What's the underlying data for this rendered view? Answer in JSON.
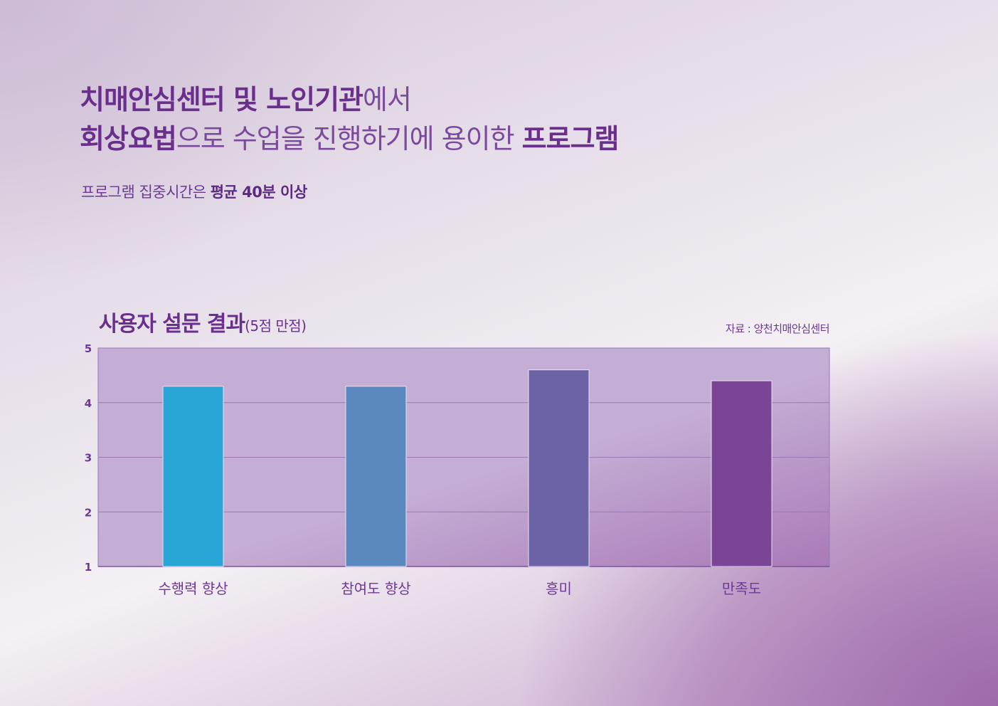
{
  "heading": {
    "line1_bold": "치매안심센터 및 노인기관",
    "line1_rest": "에서",
    "line2_bold": "회상요법",
    "line2_mid": "으로 수업을 진행하기에 용이한 ",
    "line2_end": "프로그램"
  },
  "subline": {
    "prefix": "프로그램 집중시간은 ",
    "bold": "평균 40분 이상"
  },
  "source": "자료 : 양천치매안심센터",
  "colors": {
    "bar1": "#2aa6d6",
    "bar2": "#5a88bf",
    "bar3": "#6c62a6",
    "bar4": "#7a4595",
    "plot_bg": "#c5aed5",
    "grid": "#9a78b3"
  },
  "chart_data": {
    "type": "bar",
    "title": "사용자 설문 결과",
    "title_note": "(5점 만점)",
    "categories": [
      "수행력 향상",
      "참여도 향상",
      "흥미",
      "만족도"
    ],
    "values": [
      4.3,
      4.3,
      4.6,
      4.4
    ],
    "ylim": [
      1,
      5
    ],
    "yticks": [
      "1",
      "2",
      "3",
      "4",
      "5"
    ],
    "grid": true
  }
}
